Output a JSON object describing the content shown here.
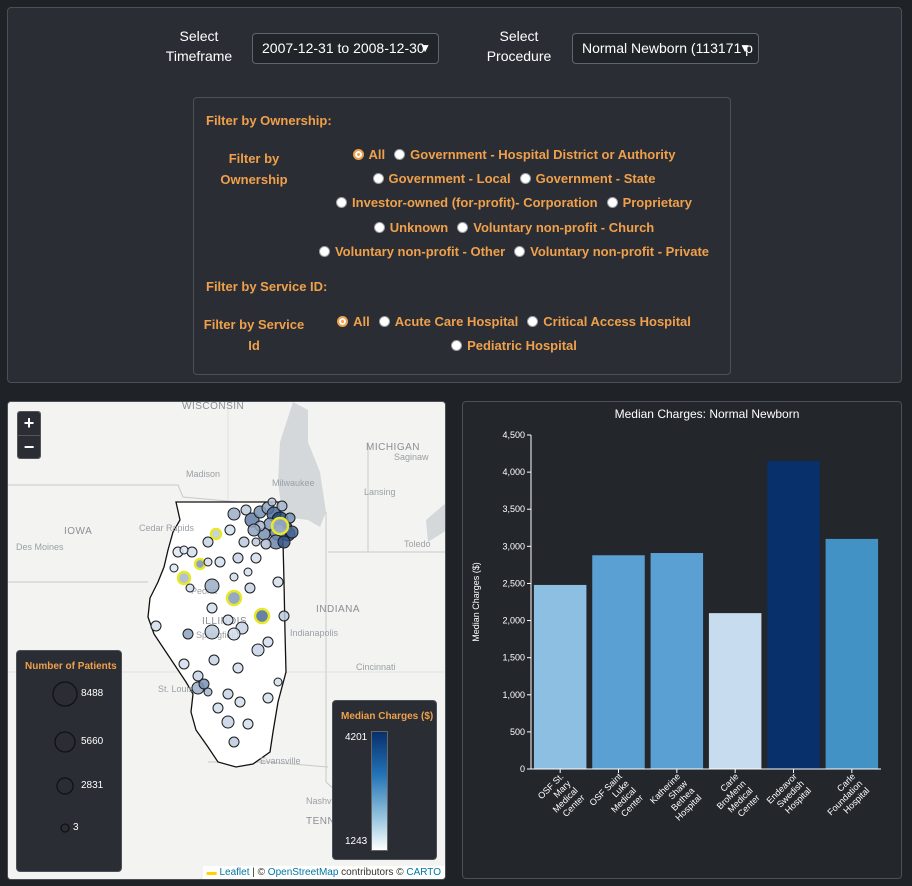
{
  "controls": {
    "timeframe_label": "Select Timeframe",
    "timeframe_value": "2007-12-31 to 2008-12-30",
    "procedure_label": "Select Procedure",
    "procedure_value": "Normal Newborn (113171 p"
  },
  "ownership_filter": {
    "heading": "Filter by Ownership:",
    "side_label": "Filter by Ownership",
    "rows": [
      [
        "All",
        "Government - Hospital District or Authority"
      ],
      [
        "Government - Local",
        "Government - State"
      ],
      [
        "Investor-owned (for-profit)- Corporation",
        "Proprietary"
      ],
      [
        "Unknown",
        "Voluntary non-profit - Church"
      ],
      [
        "Voluntary non-profit - Other",
        "Voluntary non-profit - Private"
      ]
    ],
    "selected": "All"
  },
  "service_filter": {
    "heading": "Filter by Service ID:",
    "side_label": "Filter by Service Id",
    "rows": [
      [
        "All",
        "Acute Care Hospital",
        "Critical Access Hospital"
      ],
      [
        "Pediatric Hospital"
      ]
    ],
    "selected": "All"
  },
  "map": {
    "zoom_in": "+",
    "zoom_out": "−",
    "place_labels": [
      "WISCONSIN",
      "MICHIGAN",
      "Saginaw",
      "Madison",
      "Lansing",
      "Milwaukee",
      "IOWA",
      "Cedar Rapids",
      "Des Moines",
      "Toledo",
      "Peoria",
      "ILLINOIS",
      "INDIANA",
      "Indianapolis",
      "Springfield",
      "Cincinnati",
      "St. Louis",
      "Evansville",
      "Louisville",
      "Nashville",
      "TENN"
    ],
    "patients_legend": {
      "title": "Number of Patients",
      "values": [
        "8488",
        "5660",
        "2831",
        "3"
      ]
    },
    "charges_legend": {
      "title": "Median Charges ($)",
      "max": "4201",
      "min": "1243"
    },
    "attribution": {
      "leaflet": "Leaflet",
      "sep1": " | © ",
      "osm": "OpenStreetMap",
      "mid": " contributors © ",
      "carto": "CARTO"
    }
  },
  "chart_data": {
    "type": "bar",
    "title": "Median Charges: Normal Newborn",
    "ylabel": "Median Charges ($)",
    "xlabel": "",
    "ylim": [
      0,
      4500
    ],
    "yticks": [
      0,
      500,
      1000,
      1500,
      2000,
      2500,
      3000,
      3500,
      4000,
      4500
    ],
    "ytick_labels": [
      "0",
      "500",
      "1,000",
      "1,500",
      "2,000",
      "2,500",
      "3,000",
      "3,500",
      "4,000",
      "4,500"
    ],
    "categories": [
      "OSF St. Mary Medical Center",
      "OSF Saint Luke Medical Center",
      "Katherine Shaw Bethea Hospital",
      "Carle BroMenn Medical Center",
      "Endeavor Swedish Hospital",
      "Carle Foundation Hospital"
    ],
    "category_lines": [
      [
        "OSF St.",
        "Mary",
        "Medical",
        "Center"
      ],
      [
        "OSF Saint",
        "Luke",
        "Medical",
        "Center"
      ],
      [
        "Katherine",
        "Shaw",
        "Bethea",
        "Hospital"
      ],
      [
        "Carle",
        "BroMenn",
        "Medical",
        "Center"
      ],
      [
        "Endeavor",
        "Swedish",
        "Hospital"
      ],
      [
        "Carle",
        "Foundation",
        "Hospital"
      ]
    ],
    "values": [
      2480,
      2880,
      2910,
      2100,
      4150,
      3100
    ],
    "colors": [
      "#8cbfe1",
      "#5aa0d2",
      "#5aa0d2",
      "#c7dcef",
      "#08306b",
      "#4292c6"
    ]
  }
}
